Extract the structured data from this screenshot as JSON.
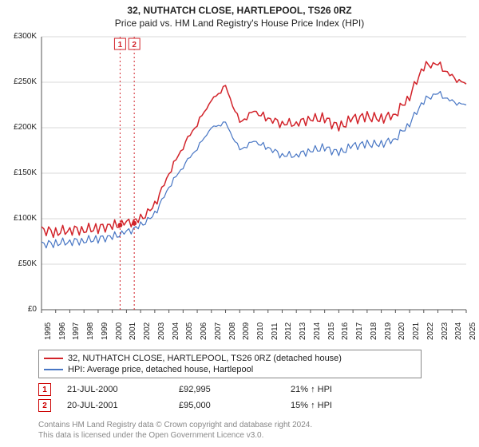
{
  "title_line1": "32, NUTHATCH CLOSE, HARTLEPOOL, TS26 0RZ",
  "title_line2": "Price paid vs. HM Land Registry's House Price Index (HPI)",
  "chart": {
    "type": "line",
    "background_color": "#ffffff",
    "grid_color": "#d9d9d9",
    "axis_color": "#555555",
    "text_color": "#222222",
    "xlim": [
      1995,
      2025
    ],
    "x_ticks": [
      1995,
      1996,
      1997,
      1998,
      1999,
      2000,
      2001,
      2002,
      2003,
      2004,
      2005,
      2006,
      2007,
      2008,
      2009,
      2010,
      2011,
      2012,
      2013,
      2014,
      2015,
      2016,
      2017,
      2018,
      2019,
      2020,
      2021,
      2022,
      2023,
      2024,
      2025
    ],
    "ylim": [
      0,
      300000
    ],
    "y_prefix": "£",
    "y_ticks": [
      0,
      50000,
      100000,
      150000,
      200000,
      250000,
      300000
    ],
    "y_tick_labels": [
      "£0",
      "£50K",
      "£100K",
      "£150K",
      "£200K",
      "£250K",
      "£300K"
    ],
    "series_red": {
      "label": "32, NUTHATCH CLOSE, HARTLEPOOL, TS26 0RZ (detached house)",
      "color": "#d2232a",
      "line_width": 1.5,
      "x": [
        1995,
        1996,
        1997,
        1998,
        1999,
        2000,
        2001,
        2002,
        2003,
        2004,
        2005,
        2006,
        2007,
        2008,
        2009,
        2010,
        2011,
        2012,
        2013,
        2014,
        2015,
        2016,
        2017,
        2018,
        2019,
        2020,
        2021,
        2022,
        2023,
        2024,
        2025
      ],
      "y": [
        88000,
        85000,
        88000,
        88000,
        90000,
        92000,
        95000,
        99000,
        115000,
        150000,
        180000,
        205000,
        230000,
        245000,
        205000,
        218000,
        210000,
        205000,
        205000,
        210000,
        210000,
        200000,
        210000,
        212000,
        210000,
        215000,
        235000,
        268000,
        270000,
        255000,
        248000
      ]
    },
    "series_blue": {
      "label": "HPI: Average price, detached house, Hartlepool",
      "color": "#4876c4",
      "line_width": 1.2,
      "x": [
        1995,
        1996,
        1997,
        1998,
        1999,
        2000,
        2001,
        2002,
        2003,
        2004,
        2005,
        2006,
        2007,
        2008,
        2009,
        2010,
        2011,
        2012,
        2013,
        2014,
        2015,
        2016,
        2017,
        2018,
        2019,
        2020,
        2021,
        2022,
        2023,
        2024,
        2025
      ],
      "y": [
        72000,
        73000,
        75000,
        76000,
        78000,
        80000,
        85000,
        92000,
        105000,
        135000,
        158000,
        178000,
        200000,
        205000,
        175000,
        185000,
        178000,
        170000,
        170000,
        175000,
        178000,
        172000,
        180000,
        182000,
        182000,
        188000,
        205000,
        230000,
        238000,
        228000,
        225000
      ]
    },
    "markers": [
      {
        "id": "1",
        "x": 2000.55,
        "y": 92995,
        "dot_color": "#d2232a",
        "box_border": "#d2232a"
      },
      {
        "id": "2",
        "x": 2001.55,
        "y": 95000,
        "dot_color": "#d2232a",
        "box_border": "#d2232a"
      }
    ]
  },
  "legend": [
    {
      "color": "#d2232a",
      "label": "32, NUTHATCH CLOSE, HARTLEPOOL, TS26 0RZ (detached house)"
    },
    {
      "color": "#4876c4",
      "label": "HPI: Average price, detached house, Hartlepool"
    }
  ],
  "marker_rows": [
    {
      "id": "1",
      "date": "21-JUL-2000",
      "price": "£92,995",
      "pct": "21% ↑ HPI"
    },
    {
      "id": "2",
      "date": "20-JUL-2001",
      "price": "£95,000",
      "pct": "15% ↑ HPI"
    }
  ],
  "footer_line1": "Contains HM Land Registry data © Crown copyright and database right 2024.",
  "footer_line2": "This data is licensed under the Open Government Licence v3.0."
}
